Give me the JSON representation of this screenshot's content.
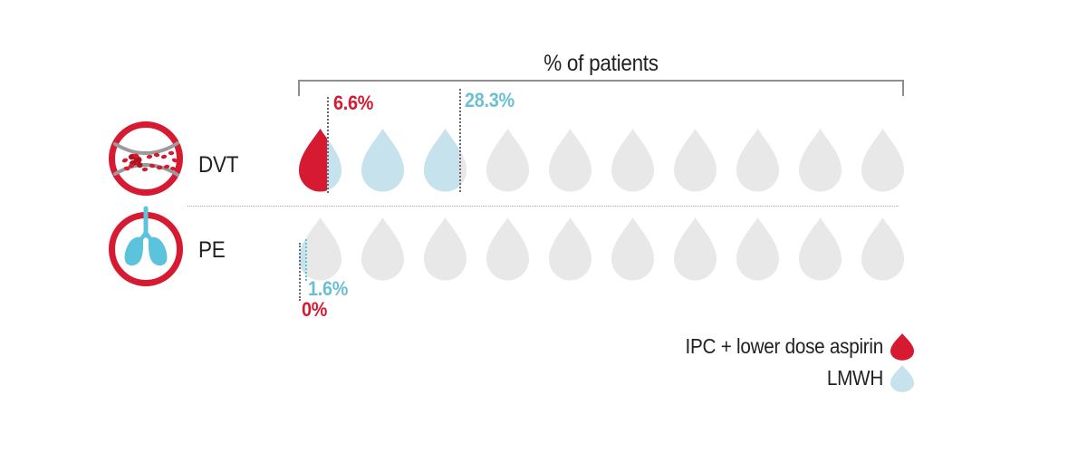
{
  "title": "% of patients",
  "rows": [
    {
      "label": "DVT",
      "icon": "blood-clot-vessel-icon",
      "ipc_value": "6.6%",
      "lmwh_value": "28.3%"
    },
    {
      "label": "PE",
      "icon": "lungs-icon",
      "ipc_value": "0%",
      "lmwh_value": "1.6%"
    }
  ],
  "legend": [
    {
      "label": "IPC + lower dose aspirin",
      "swatch": "red-droplet-icon",
      "color": "#d51a32"
    },
    {
      "label": "LMWH",
      "swatch": "light-blue-droplet-icon",
      "color": "#c5e2ed"
    }
  ],
  "colors": {
    "ipc_red": "#d51a32",
    "lmwh_blue": "#c5e2ed",
    "blue_label": "#6bbfd4",
    "empty_gray": "#e8e8e9",
    "lungs_blue": "#5cc3dc",
    "line_gray": "#8e8e91",
    "ink": "#221f20"
  },
  "chart_data": {
    "type": "pictogram",
    "title": "% of patients",
    "categories": [
      "DVT",
      "PE"
    ],
    "series": [
      {
        "name": "IPC + lower dose aspirin",
        "values": [
          6.6,
          0
        ],
        "color": "#d51a32"
      },
      {
        "name": "LMWH",
        "values": [
          28.3,
          1.6
        ],
        "color": "#c5e2ed"
      }
    ],
    "icons_per_row": 10,
    "icon_value_percent": 10,
    "scale_range_percent": [
      0,
      100
    ],
    "icon_shape": "droplet",
    "empty_color": "#e8e8e9",
    "legend_position": "bottom-right",
    "annotations": [
      {
        "row": "DVT",
        "series": "IPC + lower dose aspirin",
        "text": "6.6%"
      },
      {
        "row": "DVT",
        "series": "LMWH",
        "text": "28.3%"
      },
      {
        "row": "PE",
        "series": "LMWH",
        "text": "1.6%"
      },
      {
        "row": "PE",
        "series": "IPC + lower dose aspirin",
        "text": "0%"
      }
    ]
  }
}
